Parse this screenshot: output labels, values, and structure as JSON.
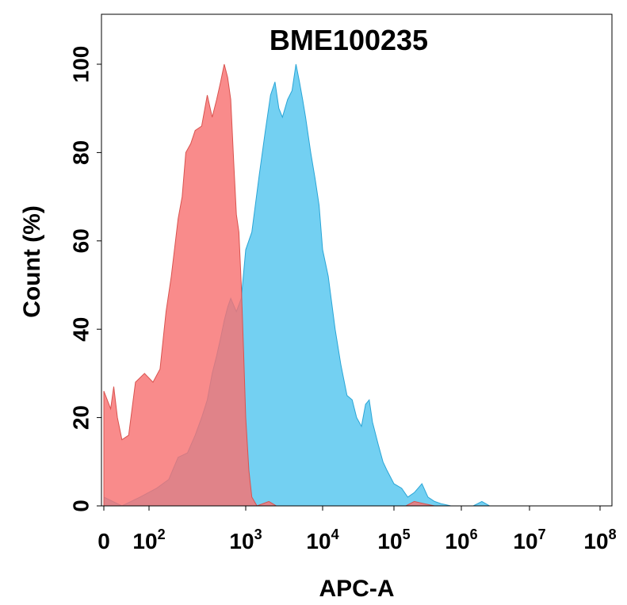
{
  "chart_data": {
    "type": "area",
    "title": "BME100235",
    "xlabel": "APC-A",
    "ylabel": "Count  (%)",
    "x_scale": "biexponential",
    "ylim": [
      0,
      100
    ],
    "x_ticks": [
      {
        "base": "0",
        "exp": ""
      },
      {
        "base": "10",
        "exp": "2"
      },
      {
        "base": "10",
        "exp": "3"
      },
      {
        "base": "10",
        "exp": "4"
      },
      {
        "base": "10",
        "exp": "5"
      },
      {
        "base": "10",
        "exp": "6"
      },
      {
        "base": "10",
        "exp": "7"
      },
      {
        "base": "10",
        "exp": "8"
      }
    ],
    "y_ticks": [
      "0",
      "20",
      "40",
      "60",
      "80",
      "100"
    ],
    "grid": false,
    "series": [
      {
        "color": "#f87171",
        "stroke": "#d9534f",
        "points": [
          [
            0,
            26
          ],
          [
            15,
            22
          ],
          [
            22,
            27
          ],
          [
            30,
            20
          ],
          [
            40,
            15
          ],
          [
            55,
            16
          ],
          [
            70,
            28
          ],
          [
            90,
            30
          ],
          [
            110,
            28
          ],
          [
            130,
            31
          ],
          [
            150,
            44
          ],
          [
            170,
            52
          ],
          [
            200,
            65
          ],
          [
            220,
            70
          ],
          [
            240,
            80
          ],
          [
            270,
            82
          ],
          [
            300,
            85
          ],
          [
            350,
            86
          ],
          [
            400,
            93
          ],
          [
            450,
            88
          ],
          [
            500,
            92
          ],
          [
            550,
            96
          ],
          [
            600,
            100
          ],
          [
            650,
            97
          ],
          [
            700,
            92
          ],
          [
            750,
            78
          ],
          [
            800,
            66
          ],
          [
            850,
            62
          ],
          [
            900,
            50
          ],
          [
            950,
            35
          ],
          [
            1000,
            20
          ],
          [
            1100,
            8
          ],
          [
            1200,
            2
          ],
          [
            1400,
            0
          ],
          [
            2000,
            1
          ],
          [
            2500,
            0
          ],
          [
            150000,
            0
          ],
          [
            200000,
            1
          ],
          [
            280000,
            0.5
          ],
          [
            400000,
            0
          ]
        ]
      },
      {
        "color": "#5bc8f0",
        "stroke": "#2aa5d6",
        "points": [
          [
            0,
            2
          ],
          [
            20,
            1
          ],
          [
            40,
            0
          ],
          [
            80,
            2
          ],
          [
            120,
            4
          ],
          [
            160,
            6
          ],
          [
            200,
            11
          ],
          [
            250,
            12
          ],
          [
            300,
            16
          ],
          [
            350,
            20
          ],
          [
            400,
            24
          ],
          [
            450,
            30
          ],
          [
            500,
            34
          ],
          [
            550,
            38
          ],
          [
            600,
            42
          ],
          [
            650,
            45
          ],
          [
            700,
            47
          ],
          [
            800,
            44
          ],
          [
            900,
            47
          ],
          [
            1000,
            58
          ],
          [
            1200,
            62
          ],
          [
            1500,
            75
          ],
          [
            1800,
            85
          ],
          [
            2100,
            93
          ],
          [
            2400,
            96
          ],
          [
            2700,
            90
          ],
          [
            3000,
            88
          ],
          [
            3500,
            92
          ],
          [
            4000,
            94
          ],
          [
            4500,
            100
          ],
          [
            5000,
            96
          ],
          [
            5500,
            92
          ],
          [
            6000,
            88
          ],
          [
            7000,
            80
          ],
          [
            8000,
            74
          ],
          [
            9000,
            68
          ],
          [
            10000,
            58
          ],
          [
            12000,
            52
          ],
          [
            15000,
            40
          ],
          [
            18000,
            32
          ],
          [
            22000,
            25
          ],
          [
            26000,
            24
          ],
          [
            30000,
            20
          ],
          [
            35000,
            18
          ],
          [
            40000,
            23
          ],
          [
            45000,
            24
          ],
          [
            50000,
            19
          ],
          [
            60000,
            14
          ],
          [
            70000,
            10
          ],
          [
            80000,
            8
          ],
          [
            100000,
            5
          ],
          [
            130000,
            4
          ],
          [
            160000,
            2
          ],
          [
            200000,
            3
          ],
          [
            260000,
            5
          ],
          [
            320000,
            2
          ],
          [
            400000,
            1
          ],
          [
            500000,
            0.5
          ],
          [
            700000,
            0
          ],
          [
            1500000,
            0
          ],
          [
            2000000,
            1
          ],
          [
            2600000,
            0
          ],
          [
            100000000,
            0
          ]
        ]
      }
    ]
  }
}
